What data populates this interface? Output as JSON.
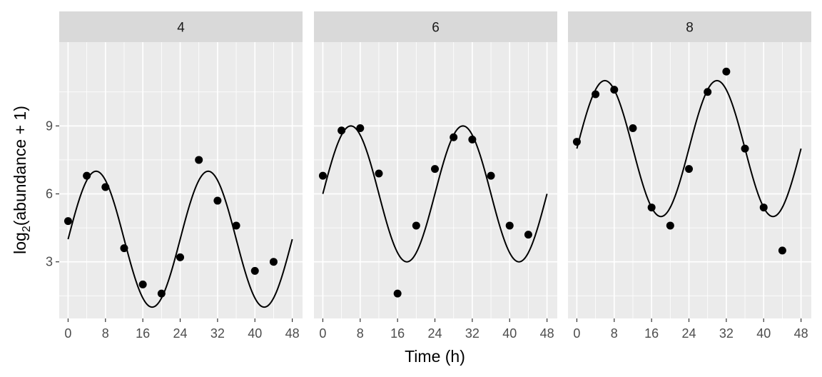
{
  "chart_data": {
    "type": "scatter",
    "facet_variable_values": [
      "4",
      "6",
      "8"
    ],
    "xlabel": "Time (h)",
    "ylabel_main": "log",
    "ylabel_sub": "2",
    "ylabel_rest": "(abundance + 1)",
    "xlim": [
      -1.9,
      50.2
    ],
    "ylim": [
      0.5,
      12.7
    ],
    "x_ticks": [
      0,
      8,
      16,
      24,
      32,
      40,
      48
    ],
    "y_ticks": [
      3,
      6,
      9
    ],
    "grid": true,
    "fit_curve": {
      "period": 24,
      "mesor": [
        4,
        6,
        8
      ],
      "amplitude": 3,
      "x_range": [
        0,
        48
      ]
    },
    "panels": [
      {
        "facet": "4",
        "points": [
          [
            0,
            4.8
          ],
          [
            4,
            6.8
          ],
          [
            8,
            6.3
          ],
          [
            12,
            3.6
          ],
          [
            16,
            2.0
          ],
          [
            20,
            1.6
          ],
          [
            24,
            3.2
          ],
          [
            28,
            7.5
          ],
          [
            32,
            5.7
          ],
          [
            36,
            4.6
          ],
          [
            40,
            2.6
          ],
          [
            44,
            3.0
          ]
        ]
      },
      {
        "facet": "6",
        "points": [
          [
            0,
            6.8
          ],
          [
            4,
            8.8
          ],
          [
            8,
            8.9
          ],
          [
            12,
            6.9
          ],
          [
            16,
            1.6
          ],
          [
            20,
            4.6
          ],
          [
            24,
            7.1
          ],
          [
            28,
            8.5
          ],
          [
            32,
            8.4
          ],
          [
            36,
            6.8
          ],
          [
            40,
            4.6
          ],
          [
            44,
            4.2
          ]
        ]
      },
      {
        "facet": "8",
        "points": [
          [
            0,
            8.3
          ],
          [
            4,
            10.4
          ],
          [
            8,
            10.6
          ],
          [
            12,
            8.9
          ],
          [
            16,
            5.4
          ],
          [
            20,
            4.6
          ],
          [
            24,
            7.1
          ],
          [
            28,
            10.5
          ],
          [
            32,
            11.4
          ],
          [
            36,
            8.0
          ],
          [
            40,
            5.4
          ],
          [
            44,
            3.5
          ]
        ]
      }
    ],
    "colors": {
      "panel_bg": "#ebebeb",
      "strip_bg": "#d9d9d9",
      "grid": "#ffffff",
      "points": "#000000",
      "line": "#000000"
    }
  }
}
